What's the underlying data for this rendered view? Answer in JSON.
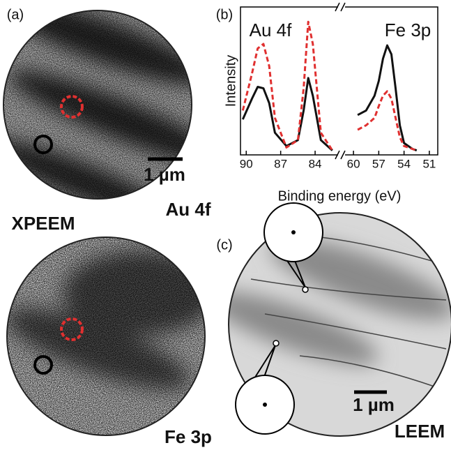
{
  "panels": {
    "a": "(a)",
    "b": "(b)",
    "c": "(c)"
  },
  "images": {
    "top_label": "Au 4f",
    "technique_label": "XPEEM",
    "bottom_label": "Fe 3p",
    "leem_label": "LEEM",
    "scale_bar_top": "1 µm",
    "scale_bar_leem": "1 µm"
  },
  "chart_data": {
    "type": "line",
    "annotations": [
      "Au 4f",
      "Fe 3p"
    ],
    "xlabel": "Binding energy (eV)",
    "ylabel": "Intensity",
    "xlim": [
      90.5,
      50
    ],
    "xbreak": [
      82,
      61
    ],
    "reverse_x": true,
    "xticks": [
      90,
      87,
      84,
      60,
      57,
      54,
      51
    ],
    "ylim": [
      0,
      1
    ],
    "x": [
      90.3,
      89.5,
      89,
      88.5,
      88,
      87.5,
      86.5,
      85.5,
      85,
      84.6,
      84.2,
      83.5,
      82.5,
      59.5,
      58.5,
      57.5,
      57,
      56.5,
      56,
      55.5,
      55,
      54.5,
      54,
      53,
      52.5
    ],
    "series": [
      {
        "color": "#111111",
        "dash": false,
        "values": [
          0.24,
          0.38,
          0.46,
          0.45,
          0.35,
          0.15,
          0.06,
          0.1,
          0.3,
          0.52,
          0.4,
          0.1,
          0.03,
          0.27,
          0.3,
          0.4,
          0.5,
          0.65,
          0.74,
          0.68,
          0.45,
          0.2,
          0.08,
          0.04,
          0.03
        ]
      },
      {
        "color": "#e03030",
        "dash": true,
        "values": [
          0.3,
          0.55,
          0.72,
          0.75,
          0.6,
          0.25,
          0.05,
          0.1,
          0.45,
          0.9,
          0.75,
          0.15,
          0.03,
          0.17,
          0.2,
          0.25,
          0.33,
          0.4,
          0.43,
          0.38,
          0.25,
          0.12,
          0.06,
          0.04,
          0.03
        ]
      }
    ]
  }
}
